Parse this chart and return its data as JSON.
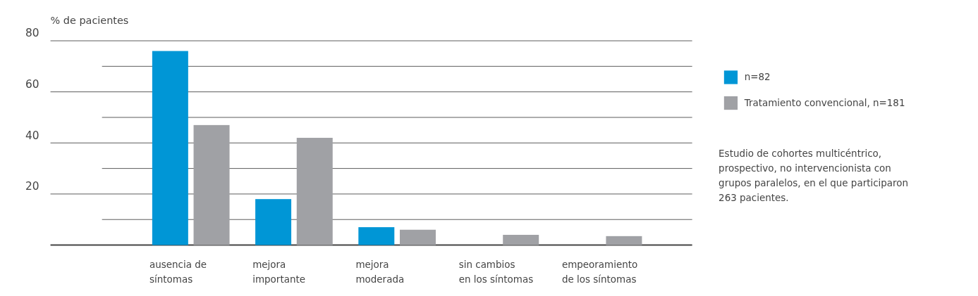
{
  "chart_data": {
    "type": "bar",
    "ylabel": "% de pacientes",
    "categories": [
      "ausencia de síntomas",
      "mejora importante",
      "mejora moderada",
      "sin cambios en los síntomas",
      "empeoramiento de los síntomas"
    ],
    "series": [
      {
        "name": "n=82",
        "color": "#0096d6",
        "values": [
          76,
          18,
          7,
          0,
          0
        ]
      },
      {
        "name": "Tratamiento convencional, n=181",
        "color": "#a0a1a5",
        "values": [
          47,
          42,
          6,
          4,
          3.5
        ]
      }
    ],
    "ylim": [
      0,
      80
    ],
    "yticks": [
      {
        "value": 0,
        "label": null
      },
      {
        "value": 10,
        "label": null
      },
      20,
      {
        "value": 30,
        "label": null
      },
      40,
      {
        "value": 50,
        "label": null
      },
      60,
      {
        "value": 70,
        "label": null
      },
      80
    ],
    "grid": true,
    "legend": "right",
    "annotations": [
      "Estudio de cohortes multicéntrico, prospectivo, no intervencionista con grupos paralelos, en el que participaron 263 pacientes."
    ]
  }
}
